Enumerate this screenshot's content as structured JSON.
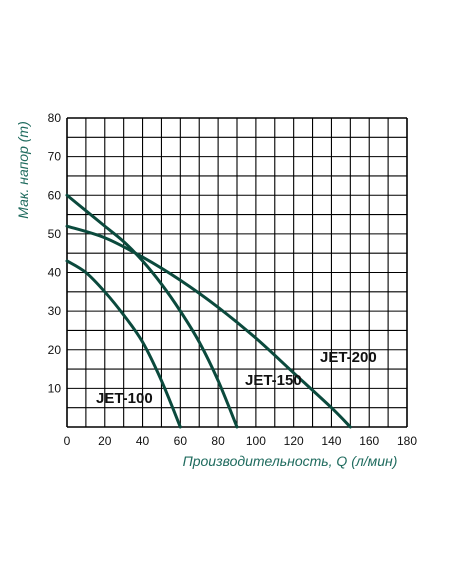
{
  "chart_data": {
    "type": "line",
    "xlabel": "Производительность, Q (л/мин)",
    "ylabel": "Мак. напор (m)",
    "xlim": [
      0,
      180
    ],
    "ylim": [
      0,
      80
    ],
    "x_ticks": [
      "0",
      "10",
      "20",
      "30",
      "40",
      "50",
      "60",
      "70",
      "80",
      "90",
      "100",
      "110",
      "120",
      "130",
      "140",
      "150",
      "160",
      "170",
      "180"
    ],
    "x_tick_labels_shown": [
      "0",
      "20",
      "40",
      "60",
      "80",
      "100",
      "120",
      "140",
      "160",
      "180"
    ],
    "y_ticks": [
      "10",
      "20",
      "30",
      "40",
      "50",
      "60",
      "70",
      "80"
    ],
    "grid": true,
    "line_color": "#0b4a3d",
    "series": [
      {
        "name": "JET-100",
        "points": [
          [
            0,
            43
          ],
          [
            10,
            40
          ],
          [
            20,
            35
          ],
          [
            30,
            29
          ],
          [
            40,
            22
          ],
          [
            50,
            12
          ],
          [
            60,
            0
          ]
        ]
      },
      {
        "name": "JET-150",
        "points": [
          [
            0,
            60
          ],
          [
            10,
            56
          ],
          [
            20,
            52
          ],
          [
            30,
            48
          ],
          [
            40,
            43
          ],
          [
            50,
            37
          ],
          [
            60,
            30
          ],
          [
            70,
            22
          ],
          [
            80,
            12
          ],
          [
            90,
            0
          ]
        ]
      },
      {
        "name": "JET-200",
        "points": [
          [
            0,
            52
          ],
          [
            20,
            49
          ],
          [
            40,
            44
          ],
          [
            60,
            38
          ],
          [
            80,
            31
          ],
          [
            100,
            23
          ],
          [
            120,
            14
          ],
          [
            140,
            5
          ],
          [
            150,
            0
          ]
        ]
      }
    ]
  }
}
